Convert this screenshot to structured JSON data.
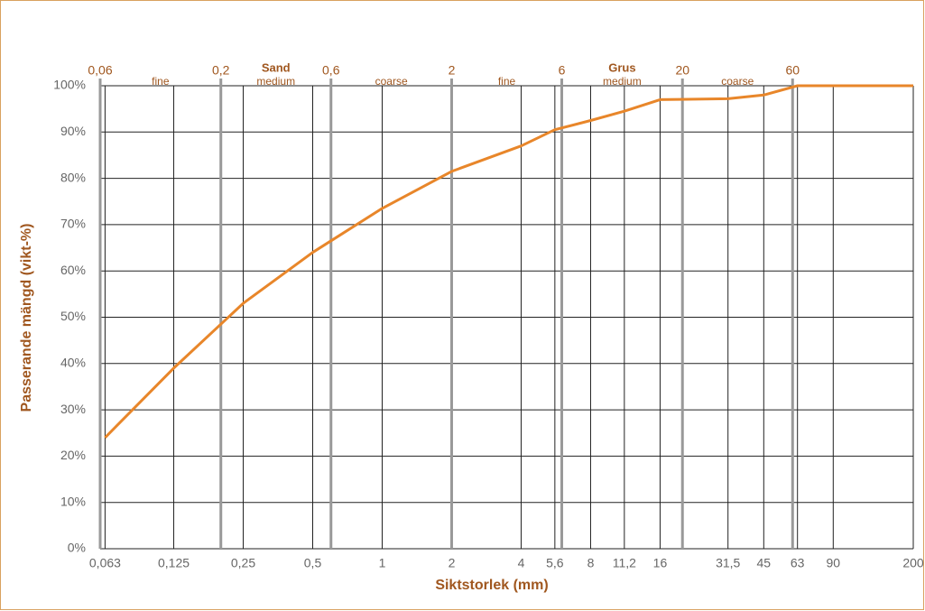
{
  "chart_data": {
    "type": "line",
    "xlabel": "Siktstorlek (mm)",
    "ylabel": "Passerande mängd (vikt-%)",
    "xscale": "log",
    "grid": true,
    "x": [
      0.063,
      0.125,
      0.25,
      0.5,
      1,
      2,
      4,
      5.6,
      8,
      11.2,
      16,
      31.5,
      45,
      63,
      90,
      200
    ],
    "series": [
      {
        "name": "Passerande mängd",
        "color": "#e8862a",
        "values": [
          24,
          39,
          53,
          64,
          73.5,
          81.5,
          87,
          90.5,
          92.5,
          94.5,
          97,
          97.2,
          98,
          100,
          100,
          100
        ]
      }
    ],
    "xlim": [
      0.06,
      200
    ],
    "ylim": [
      0,
      100
    ],
    "xticks": [
      {
        "value": 0.063,
        "label": "0,063"
      },
      {
        "value": 0.125,
        "label": "0,125"
      },
      {
        "value": 0.25,
        "label": "0,25"
      },
      {
        "value": 0.5,
        "label": "0,5"
      },
      1,
      2,
      4,
      {
        "value": 5.6,
        "label": "5,6"
      },
      8,
      {
        "value": 11.2,
        "label": "11,2"
      },
      16,
      {
        "value": 31.5,
        "label": "31,5"
      },
      45,
      63,
      90,
      200
    ],
    "yticks": [
      {
        "value": 0,
        "label": "0%"
      },
      {
        "value": 10,
        "label": "10%"
      },
      {
        "value": 20,
        "label": "20%"
      },
      {
        "value": 30,
        "label": "30%"
      },
      {
        "value": 40,
        "label": "40%"
      },
      {
        "value": 50,
        "label": "50%"
      },
      {
        "value": 60,
        "label": "60%"
      },
      {
        "value": 70,
        "label": "70%"
      },
      {
        "value": 80,
        "label": "80%"
      },
      {
        "value": 90,
        "label": "90%"
      },
      {
        "value": 100,
        "label": "100%"
      }
    ],
    "top_ticks": [
      {
        "value": 0.06,
        "label": "0,06"
      },
      {
        "value": 0.2,
        "label": "0,2"
      },
      {
        "value": 0.6,
        "label": "0,6"
      },
      2,
      6,
      20,
      60
    ],
    "fractions": [
      {
        "label": "Sand",
        "subs": [
          "fine",
          "medium",
          "coarse"
        ]
      },
      {
        "label": "Grus",
        "subs": [
          "fine",
          "medium",
          "coarse"
        ]
      }
    ]
  }
}
